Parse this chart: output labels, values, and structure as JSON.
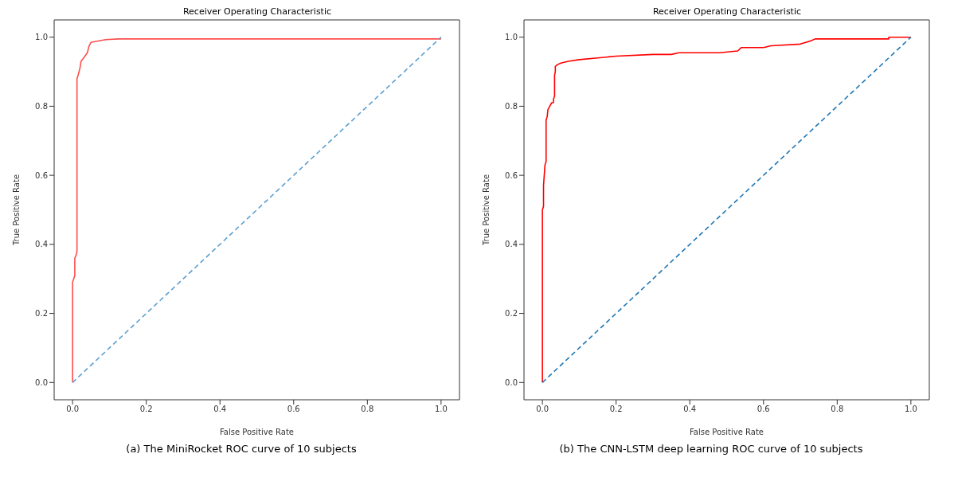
{
  "chart_data": [
    {
      "type": "line",
      "title": "Receiver Operating Characteristic",
      "xlabel": "False Positive Rate",
      "ylabel": "True Positive Rate",
      "xlim": [
        -0.05,
        1.05
      ],
      "ylim": [
        -0.05,
        1.05
      ],
      "xticks": [
        {
          "value": 0,
          "label": "0.0"
        },
        {
          "value": 0.2,
          "label": "0.2"
        },
        {
          "value": 0.4,
          "label": "0.4"
        },
        {
          "value": 0.6,
          "label": "0.6"
        },
        {
          "value": 0.8,
          "label": "0.8"
        },
        {
          "value": 1,
          "label": "1.0"
        }
      ],
      "yticks": [
        {
          "value": 0,
          "label": "0.0"
        },
        {
          "value": 0.2,
          "label": "0.2"
        },
        {
          "value": 0.4,
          "label": "0.4"
        },
        {
          "value": 0.6,
          "label": "0.6"
        },
        {
          "value": 0.8,
          "label": "0.8"
        },
        {
          "value": 1,
          "label": "1.0"
        }
      ],
      "series": [
        {
          "color": "#ff4d4d",
          "line_style": "solid",
          "x": [
            0,
            0,
            0.003,
            0.006,
            0.006,
            0.01,
            0.012,
            0.012,
            0.015,
            0.02,
            0.023,
            0.03,
            0.04,
            0.045,
            0.05,
            0.06,
            0.075,
            0.09,
            0.125,
            1.0
          ],
          "values": [
            0,
            0.29,
            0.3,
            0.31,
            0.36,
            0.37,
            0.38,
            0.88,
            0.89,
            0.91,
            0.93,
            0.94,
            0.955,
            0.975,
            0.985,
            0.987,
            0.99,
            0.993,
            0.995,
            0.995
          ]
        },
        {
          "color": "#5b9fd1",
          "line_style": "dashed",
          "x": [
            0,
            1
          ],
          "values": [
            0,
            1
          ]
        }
      ],
      "annotations": [
        "(a) The MiniRocket ROC curve of 10 subjects"
      ]
    },
    {
      "type": "line",
      "title": "Receiver Operating Characteristic",
      "xlabel": "False Positive Rate",
      "ylabel": "True Positive Rate",
      "xlim": [
        -0.05,
        1.05
      ],
      "ylim": [
        -0.05,
        1.05
      ],
      "xticks": [
        {
          "value": 0,
          "label": "0.0"
        },
        {
          "value": 0.2,
          "label": "0.2"
        },
        {
          "value": 0.4,
          "label": "0.4"
        },
        {
          "value": 0.6,
          "label": "0.6"
        },
        {
          "value": 0.8,
          "label": "0.8"
        },
        {
          "value": 1,
          "label": "1.0"
        }
      ],
      "yticks": [
        {
          "value": 0,
          "label": "0.0"
        },
        {
          "value": 0.2,
          "label": "0.2"
        },
        {
          "value": 0.4,
          "label": "0.4"
        },
        {
          "value": 0.6,
          "label": "0.6"
        },
        {
          "value": 0.8,
          "label": "0.8"
        },
        {
          "value": 1,
          "label": "1.0"
        }
      ],
      "series": [
        {
          "color": "#ff0000",
          "line_style": "solid",
          "x": [
            0,
            0,
            0.003,
            0.003,
            0.005,
            0.007,
            0.01,
            0.01,
            0.013,
            0.015,
            0.02,
            0.025,
            0.03,
            0.03,
            0.033,
            0.033,
            0.035,
            0.035,
            0.04,
            0.05,
            0.07,
            0.1,
            0.15,
            0.2,
            0.3,
            0.35,
            0.37,
            0.48,
            0.53,
            0.54,
            0.6,
            0.62,
            0.7,
            0.73,
            0.74,
            0.94,
            0.94,
            1.0
          ],
          "values": [
            0,
            0.5,
            0.51,
            0.57,
            0.6,
            0.63,
            0.64,
            0.76,
            0.77,
            0.79,
            0.8,
            0.81,
            0.81,
            0.82,
            0.83,
            0.89,
            0.9,
            0.915,
            0.92,
            0.925,
            0.93,
            0.935,
            0.94,
            0.945,
            0.95,
            0.95,
            0.955,
            0.955,
            0.96,
            0.97,
            0.97,
            0.975,
            0.98,
            0.99,
            0.995,
            0.995,
            1.0,
            1.0
          ]
        },
        {
          "color": "#1f77b4",
          "line_style": "dashed",
          "x": [
            0,
            1
          ],
          "values": [
            0,
            1
          ]
        }
      ],
      "annotations": [
        "(b) The CNN-LSTM deep learning ROC curve of 10 subjects"
      ]
    }
  ]
}
